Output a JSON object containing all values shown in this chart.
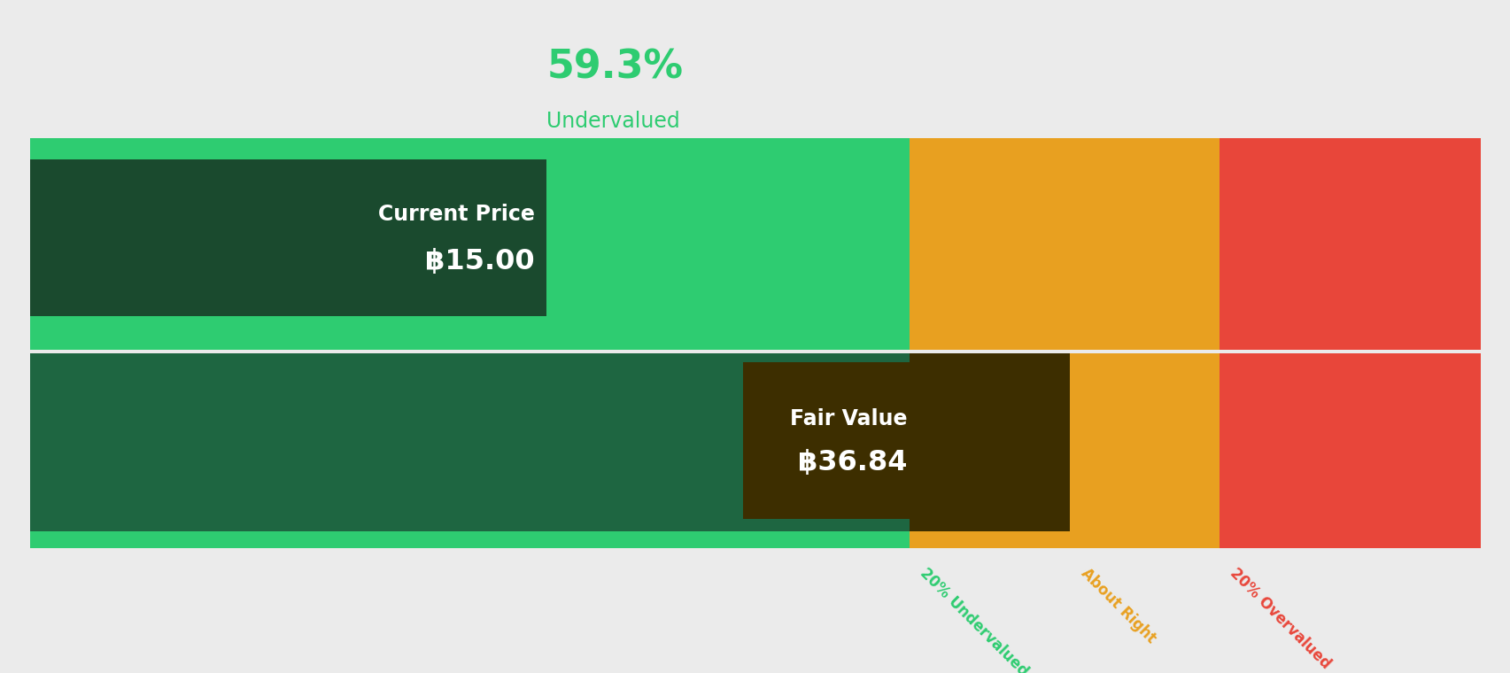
{
  "background_color": "#ebebeb",
  "pct_label": "59.3%",
  "pct_sublabel": "Undervalued",
  "pct_color": "#2ecc71",
  "current_price_label": "Current Price",
  "current_price_value": "฿15.00",
  "fair_value_label": "Fair Value",
  "fair_value_value": "฿36.84",
  "seg_cp": 0.356,
  "seg_fv": 0.606,
  "seg_ar": 0.717,
  "seg_ov": 0.82,
  "top_bar_color_left": "#2ecc71",
  "top_bar_color_orange": "#e8a020",
  "top_bar_color_red": "#e8463a",
  "bottom_bar_color_left": "#1e6641",
  "bottom_bar_color_brown": "#3d2e00",
  "bottom_bar_color_orange": "#e8a020",
  "bottom_bar_color_red": "#e8463a",
  "cp_box_color": "#1a4a2e",
  "fv_box_color": "#3d2e00",
  "label_20pct_under_color": "#2ecc71",
  "label_about_right_color": "#e8a020",
  "label_20pct_over_color": "#e8463a"
}
